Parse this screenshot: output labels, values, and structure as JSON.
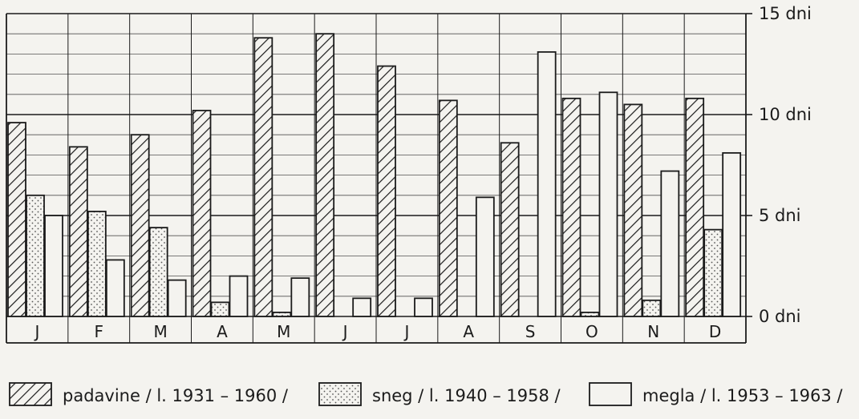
{
  "chart_data": {
    "type": "bar",
    "categories": [
      "J",
      "F",
      "M",
      "A",
      "M",
      "J",
      "J",
      "A",
      "S",
      "O",
      "N",
      "D"
    ],
    "series": [
      {
        "name": "padavine / l. 1931 – 1960 /",
        "pattern": "hatch",
        "values": [
          9.6,
          8.4,
          9.0,
          10.2,
          13.8,
          14.0,
          12.4,
          10.7,
          8.6,
          10.8,
          10.5,
          10.8
        ]
      },
      {
        "name": "sneg / l. 1940 – 1958 /",
        "pattern": "dots",
        "values": [
          6.0,
          5.2,
          4.4,
          0.7,
          0.2,
          0.0,
          0.0,
          0.0,
          0.0,
          0.2,
          0.8,
          4.3
        ]
      },
      {
        "name": "megla / l. 1953 – 1963 /",
        "pattern": "blank",
        "values": [
          5.0,
          2.8,
          1.8,
          2.0,
          1.9,
          0.9,
          0.9,
          5.9,
          13.1,
          11.1,
          7.2,
          8.1
        ]
      }
    ],
    "ylim": [
      0,
      15
    ],
    "yticks": [
      "0 dni",
      "5 dni",
      "10 dni",
      "15 dni"
    ],
    "grid": true,
    "legend_position": "bottom"
  },
  "colors": {
    "ink": "#1b1b1b",
    "paper": "#f4f3ef",
    "dots": "#555555"
  }
}
